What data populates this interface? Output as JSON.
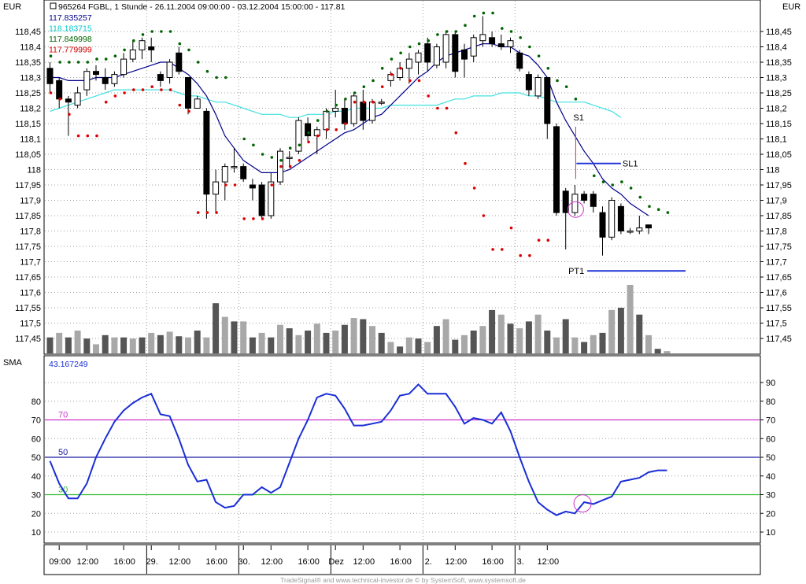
{
  "header": {
    "currency_left": "EUR",
    "currency_right": "EUR",
    "instrument_title": "965264  FGBL, 1 Stunde - 26.11.2004 09:00:00 - 03.12.2004 15:00:00 - 117.81",
    "indicator_values": [
      {
        "text": "117.835257",
        "color": "#00008b"
      },
      {
        "text": "118.183715",
        "color": "#00c8c8"
      },
      {
        "text": "117.849998",
        "color": "#006400"
      },
      {
        "text": "117.779999",
        "color": "#cc0000"
      }
    ]
  },
  "lower_panel": {
    "label": "SMA",
    "value": "43.167249"
  },
  "footer": {
    "credit": "TradeSignal® and www.technical-investor.de © by SystemSoft, www.systemsoft.de"
  },
  "annotations": {
    "s1": "S1",
    "sl1": "SL1",
    "pt1": "PT1"
  },
  "colors": {
    "sma_short": "#00008b",
    "sma_long": "#40e0e0",
    "dots_upper": "#006400",
    "dots_lower": "#dd0000",
    "oscillator": "#1a2fd6",
    "level_70": "#cc33cc",
    "level_50": "#1a1aa0",
    "level_30": "#33bb33",
    "signal_circle": "#cc33cc",
    "volume_dark": "#555555",
    "volume_light": "#a8a8a8"
  },
  "chart_data": [
    {
      "type": "candlestick",
      "title": "965264  FGBL, 1 Stunde - 26.11.2004 09:00:00 - 03.12.2004 15:00:00 - 117.81",
      "y_ticks": [
        "118,45",
        "118,4",
        "118,35",
        "118,3",
        "118,25",
        "118,2",
        "118,15",
        "118,1",
        "118,05",
        "118",
        "117,95",
        "117,9",
        "117,85",
        "117,8",
        "117,75",
        "117,7",
        "117,65",
        "117,6",
        "117,55",
        "117,5",
        "117,45"
      ],
      "ylim": [
        117.4,
        118.54
      ],
      "x_ticks": [
        {
          "label": "09:00",
          "bar": 1
        },
        {
          "label": "12:00",
          "bar": 4
        },
        {
          "label": "16:00",
          "bar": 8
        },
        {
          "label": "29.",
          "bar": 11
        },
        {
          "label": "12:00",
          "bar": 14
        },
        {
          "label": "16:00",
          "bar": 18
        },
        {
          "label": "30.",
          "bar": 21
        },
        {
          "label": "12:00",
          "bar": 24
        },
        {
          "label": "16:00",
          "bar": 28
        },
        {
          "label": "Dez",
          "bar": 31
        },
        {
          "label": "12:00",
          "bar": 34
        },
        {
          "label": "16:00",
          "bar": 38
        },
        {
          "label": "2.",
          "bar": 41
        },
        {
          "label": "12:00",
          "bar": 44
        },
        {
          "label": "16:00",
          "bar": 48
        },
        {
          "label": "3.",
          "bar": 51
        },
        {
          "label": "12:00",
          "bar": 54
        }
      ],
      "bars": [
        {
          "o": 118.33,
          "h": 118.35,
          "l": 118.25,
          "c": 118.28
        },
        {
          "o": 118.29,
          "h": 118.3,
          "l": 118.2,
          "c": 118.23
        },
        {
          "o": 118.23,
          "h": 118.24,
          "l": 118.11,
          "c": 118.22
        },
        {
          "o": 118.21,
          "h": 118.27,
          "l": 118.2,
          "c": 118.25
        },
        {
          "o": 118.26,
          "h": 118.33,
          "l": 118.24,
          "c": 118.32
        },
        {
          "o": 118.32,
          "h": 118.34,
          "l": 118.29,
          "c": 118.31
        },
        {
          "o": 118.3,
          "h": 118.33,
          "l": 118.26,
          "c": 118.28
        },
        {
          "o": 118.28,
          "h": 118.32,
          "l": 118.27,
          "c": 118.31
        },
        {
          "o": 118.31,
          "h": 118.38,
          "l": 118.3,
          "c": 118.36
        },
        {
          "o": 118.36,
          "h": 118.42,
          "l": 118.35,
          "c": 118.39
        },
        {
          "o": 118.39,
          "h": 118.43,
          "l": 118.36,
          "c": 118.42
        },
        {
          "o": 118.4,
          "h": 118.43,
          "l": 118.35,
          "c": 118.39
        },
        {
          "o": 118.31,
          "h": 118.32,
          "l": 118.27,
          "c": 118.29
        },
        {
          "o": 118.3,
          "h": 118.36,
          "l": 118.28,
          "c": 118.35
        },
        {
          "o": 118.38,
          "h": 118.4,
          "l": 118.31,
          "c": 118.32
        },
        {
          "o": 118.3,
          "h": 118.3,
          "l": 118.18,
          "c": 118.2
        },
        {
          "o": 118.2,
          "h": 118.24,
          "l": 118.2,
          "c": 118.23
        },
        {
          "o": 118.19,
          "h": 118.2,
          "l": 117.84,
          "c": 117.92
        },
        {
          "o": 117.92,
          "h": 118.0,
          "l": 117.86,
          "c": 117.96
        },
        {
          "o": 117.96,
          "h": 118.02,
          "l": 117.9,
          "c": 118.01
        },
        {
          "o": 118.01,
          "h": 118.07,
          "l": 117.99,
          "c": 118.01
        },
        {
          "o": 118.01,
          "h": 118.02,
          "l": 117.96,
          "c": 117.97
        },
        {
          "o": 117.95,
          "h": 117.97,
          "l": 117.9,
          "c": 117.94
        },
        {
          "o": 117.95,
          "h": 117.96,
          "l": 117.84,
          "c": 117.85
        },
        {
          "o": 117.85,
          "h": 117.99,
          "l": 117.84,
          "c": 117.96
        },
        {
          "o": 117.96,
          "h": 118.07,
          "l": 117.95,
          "c": 118.06
        },
        {
          "o": 118.04,
          "h": 118.06,
          "l": 118.01,
          "c": 118.04
        },
        {
          "o": 118.06,
          "h": 118.17,
          "l": 118.05,
          "c": 118.16
        },
        {
          "o": 118.15,
          "h": 118.17,
          "l": 118.09,
          "c": 118.11
        },
        {
          "o": 118.11,
          "h": 118.14,
          "l": 118.05,
          "c": 118.13
        },
        {
          "o": 118.13,
          "h": 118.2,
          "l": 118.1,
          "c": 118.19
        },
        {
          "o": 118.19,
          "h": 118.26,
          "l": 118.17,
          "c": 118.2
        },
        {
          "o": 118.2,
          "h": 118.23,
          "l": 118.13,
          "c": 118.15
        },
        {
          "o": 118.15,
          "h": 118.25,
          "l": 118.14,
          "c": 118.24
        },
        {
          "o": 118.22,
          "h": 118.26,
          "l": 118.13,
          "c": 118.16
        },
        {
          "o": 118.16,
          "h": 118.23,
          "l": 118.15,
          "c": 118.22
        },
        {
          "o": 118.22,
          "h": 118.23,
          "l": 118.21,
          "c": 118.22
        },
        {
          "o": 118.29,
          "h": 118.32,
          "l": 118.27,
          "c": 118.31
        },
        {
          "o": 118.3,
          "h": 118.35,
          "l": 118.29,
          "c": 118.33
        },
        {
          "o": 118.33,
          "h": 118.38,
          "l": 118.28,
          "c": 118.36
        },
        {
          "o": 118.35,
          "h": 118.39,
          "l": 118.31,
          "c": 118.38
        },
        {
          "o": 118.41,
          "h": 118.43,
          "l": 118.32,
          "c": 118.35
        },
        {
          "o": 118.34,
          "h": 118.41,
          "l": 118.33,
          "c": 118.4
        },
        {
          "o": 118.35,
          "h": 118.45,
          "l": 118.33,
          "c": 118.44
        },
        {
          "o": 118.44,
          "h": 118.45,
          "l": 118.3,
          "c": 118.32
        },
        {
          "o": 118.39,
          "h": 118.41,
          "l": 118.3,
          "c": 118.36
        },
        {
          "o": 118.37,
          "h": 118.44,
          "l": 118.35,
          "c": 118.43
        },
        {
          "o": 118.42,
          "h": 118.5,
          "l": 118.4,
          "c": 118.44
        },
        {
          "o": 118.43,
          "h": 118.45,
          "l": 118.4,
          "c": 118.41
        },
        {
          "o": 118.41,
          "h": 118.44,
          "l": 118.39,
          "c": 118.4
        },
        {
          "o": 118.4,
          "h": 118.43,
          "l": 118.38,
          "c": 118.42
        },
        {
          "o": 118.38,
          "h": 118.39,
          "l": 118.32,
          "c": 118.33
        },
        {
          "o": 118.31,
          "h": 118.32,
          "l": 118.24,
          "c": 118.26
        },
        {
          "o": 118.24,
          "h": 118.31,
          "l": 118.23,
          "c": 118.3
        },
        {
          "o": 118.3,
          "h": 118.3,
          "l": 118.1,
          "c": 118.15
        },
        {
          "o": 118.14,
          "h": 118.15,
          "l": 117.85,
          "c": 117.86
        },
        {
          "o": 117.93,
          "h": 117.94,
          "l": 117.74,
          "c": 117.86
        },
        {
          "o": 117.86,
          "h": 117.95,
          "l": 117.85,
          "c": 117.92
        },
        {
          "o": 117.92,
          "h": 117.93,
          "l": 117.89,
          "c": 117.9
        },
        {
          "o": 117.92,
          "h": 117.93,
          "l": 117.86,
          "c": 117.88
        },
        {
          "o": 117.86,
          "h": 117.88,
          "l": 117.72,
          "c": 117.78
        },
        {
          "o": 117.78,
          "h": 117.91,
          "l": 117.77,
          "c": 117.9
        },
        {
          "o": 117.88,
          "h": 117.89,
          "l": 117.79,
          "c": 117.8
        },
        {
          "o": 117.8,
          "h": 117.81,
          "l": 117.79,
          "c": 117.8
        },
        {
          "o": 117.8,
          "h": 117.85,
          "l": 117.79,
          "c": 117.81
        },
        {
          "o": 117.82,
          "h": 117.82,
          "l": 117.79,
          "c": 117.81
        }
      ],
      "sma_short": [
        118.3,
        118.3,
        118.29,
        118.29,
        118.29,
        118.3,
        118.3,
        118.3,
        118.31,
        118.32,
        118.33,
        118.34,
        118.35,
        118.35,
        118.33,
        118.31,
        118.28,
        118.24,
        118.18,
        118.11,
        118.07,
        118.03,
        118.01,
        117.99,
        117.99,
        117.99,
        118.0,
        118.02,
        118.04,
        118.06,
        118.08,
        118.1,
        118.12,
        118.13,
        118.15,
        118.17,
        118.18,
        118.21,
        118.24,
        118.27,
        118.3,
        118.32,
        118.35,
        118.37,
        118.38,
        118.39,
        118.4,
        118.41,
        118.41,
        118.4,
        118.4,
        118.38,
        118.37,
        118.34,
        118.3,
        118.22,
        118.16,
        118.11,
        118.06,
        118.02,
        117.97,
        117.94,
        117.92,
        117.89,
        117.87,
        117.85
      ],
      "sma_long": [
        118.19,
        118.2,
        118.21,
        118.22,
        118.23,
        118.24,
        118.25,
        118.26,
        118.26,
        118.26,
        118.26,
        118.26,
        118.26,
        118.26,
        118.25,
        118.24,
        118.24,
        118.23,
        118.22,
        118.22,
        118.21,
        118.2,
        118.19,
        118.18,
        118.18,
        118.18,
        118.17,
        118.17,
        118.18,
        118.18,
        118.18,
        118.19,
        118.19,
        118.2,
        118.2,
        118.2,
        118.2,
        118.21,
        118.21,
        118.21,
        118.21,
        118.21,
        118.21,
        118.22,
        118.23,
        118.23,
        118.24,
        118.24,
        118.24,
        118.25,
        118.25,
        118.25,
        118.24,
        118.24,
        118.23,
        118.22,
        118.22,
        118.22,
        118.22,
        118.21,
        118.2,
        118.19,
        118.17
      ],
      "dots_upper": [
        118.37,
        118.35,
        118.35,
        118.35,
        118.35,
        118.36,
        118.36,
        118.37,
        118.39,
        118.42,
        118.44,
        118.45,
        118.45,
        118.45,
        118.41,
        118.39,
        118.35,
        118.32,
        118.3,
        118.3,
        null,
        118.1,
        118.08,
        118.05,
        118.04,
        118.03,
        118.07,
        118.08,
        118.12,
        118.16,
        118.19,
        118.21,
        118.23,
        118.25,
        118.27,
        118.29,
        118.33,
        118.36,
        118.38,
        118.4,
        118.41,
        118.42,
        118.44,
        118.45,
        118.45,
        118.47,
        118.5,
        118.51,
        118.51,
        118.46,
        118.45,
        118.43,
        118.4,
        118.37,
        118.33,
        118.29,
        118.27,
        118.23,
        null,
        117.98,
        117.96,
        117.95,
        117.96,
        117.94,
        117.91,
        117.88,
        117.87,
        117.86
      ],
      "dots_lower": [
        118.25,
        118.23,
        118.18,
        118.11,
        118.11,
        118.11,
        118.22,
        118.24,
        118.25,
        118.26,
        118.26,
        118.27,
        118.26,
        118.26,
        118.21,
        118.19,
        117.86,
        117.86,
        117.86,
        117.95,
        117.95,
        117.84,
        117.84,
        117.84,
        117.95,
        118.01,
        118.01,
        118.03,
        118.09,
        118.11,
        118.13,
        118.13,
        118.15,
        118.22,
        118.22,
        118.22,
        118.27,
        118.31,
        118.33,
        118.29,
        118.29,
        118.24,
        118.2,
        118.2,
        118.12,
        118.02,
        117.94,
        117.85,
        117.74,
        117.74,
        117.81,
        117.72,
        117.72,
        117.77,
        117.77
      ],
      "annotations": [
        {
          "label": "S1",
          "bar": 57,
          "price": 118.14
        },
        {
          "label": "SL1",
          "price": 118.02,
          "from_bar": 57,
          "to_bar": 62
        },
        {
          "label": "PT1",
          "price": 117.67,
          "from_bar": 58,
          "to_bar": 63
        },
        {
          "label": "signal-circle",
          "bar": 57,
          "price": 117.87
        }
      ]
    },
    {
      "type": "bar",
      "name": "volume",
      "values": [
        14,
        18,
        14,
        20,
        13,
        8,
        16,
        14,
        14,
        13,
        14,
        18,
        16,
        19,
        15,
        14,
        20,
        14,
        44,
        32,
        28,
        28,
        14,
        18,
        14,
        25,
        22,
        16,
        20,
        26,
        18,
        20,
        25,
        31,
        30,
        24,
        18,
        10,
        6,
        14,
        13,
        10,
        24,
        30,
        12,
        16,
        20,
        24,
        38,
        34,
        26,
        22,
        28,
        34,
        20,
        14,
        30,
        14,
        10,
        16,
        18,
        38,
        40,
        60,
        34,
        16,
        4,
        2
      ]
    },
    {
      "type": "line",
      "name": "SMA",
      "value_label": "43.167249",
      "y_ticks": [
        10,
        20,
        30,
        40,
        50,
        60,
        70,
        80,
        90
      ],
      "ylim": [
        4,
        96
      ],
      "levels": [
        70,
        50,
        30
      ],
      "values": [
        48,
        36,
        28,
        28,
        36,
        50,
        60,
        69,
        75,
        79,
        82,
        84,
        73,
        72,
        60,
        46,
        37,
        38,
        26,
        23,
        24,
        30,
        30,
        34,
        31,
        34,
        47,
        60,
        70,
        82,
        84,
        83,
        76,
        67,
        67,
        68,
        69,
        75,
        83,
        84,
        89,
        84,
        84,
        84,
        77,
        68,
        71,
        70,
        68,
        74,
        64,
        50,
        37,
        26,
        22,
        19,
        21,
        20,
        26,
        25,
        27,
        29,
        37,
        38,
        39,
        42,
        43,
        43
      ],
      "signal": {
        "bar": 58,
        "value": 27
      }
    }
  ]
}
